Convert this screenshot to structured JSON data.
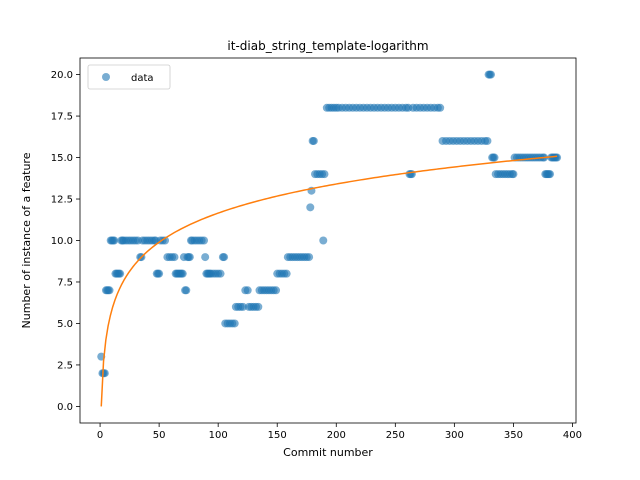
{
  "chart_data": {
    "type": "scatter",
    "title": "it-diab_string_template-logarithm",
    "xlabel": "Commit number",
    "ylabel": "Number of instance of a feature",
    "xlim": [
      -17,
      403
    ],
    "ylim": [
      -1,
      21
    ],
    "xticks": [
      0,
      50,
      100,
      150,
      200,
      250,
      300,
      350,
      400
    ],
    "yticks": [
      0.0,
      2.5,
      5.0,
      7.5,
      10.0,
      12.5,
      15.0,
      17.5,
      20.0
    ],
    "xtick_labels": [
      "0",
      "50",
      "100",
      "150",
      "200",
      "250",
      "300",
      "350",
      "400"
    ],
    "ytick_labels": [
      "0.0",
      "2.5",
      "5.0",
      "7.5",
      "10.0",
      "12.5",
      "15.0",
      "17.5",
      "20.0"
    ],
    "grid": false,
    "legend": {
      "placement": "upper-left",
      "entries": [
        "data"
      ]
    },
    "colors": {
      "data": "#1f77b4",
      "fit": "#ff7f0e"
    },
    "series": [
      {
        "name": "data",
        "kind": "scatter",
        "points": [
          [
            1,
            3
          ],
          [
            2,
            2
          ],
          [
            3,
            2
          ],
          [
            4,
            2
          ],
          [
            5,
            7
          ],
          [
            6,
            7
          ],
          [
            7,
            7
          ],
          [
            8,
            7
          ],
          [
            9,
            10
          ],
          [
            10,
            10
          ],
          [
            11,
            10
          ],
          [
            12,
            10
          ],
          [
            13,
            8
          ],
          [
            14,
            8
          ],
          [
            15,
            8
          ],
          [
            16,
            8
          ],
          [
            17,
            8
          ],
          [
            18,
            10
          ],
          [
            19,
            10
          ],
          [
            20,
            10
          ],
          [
            22,
            10
          ],
          [
            24,
            10
          ],
          [
            26,
            10
          ],
          [
            28,
            10
          ],
          [
            30,
            10
          ],
          [
            32,
            10
          ],
          [
            34,
            9
          ],
          [
            35,
            9
          ],
          [
            36,
            10
          ],
          [
            38,
            10
          ],
          [
            40,
            10
          ],
          [
            42,
            10
          ],
          [
            44,
            10
          ],
          [
            46,
            10
          ],
          [
            47,
            10
          ],
          [
            48,
            8
          ],
          [
            49,
            8
          ],
          [
            50,
            8
          ],
          [
            51,
            10
          ],
          [
            53,
            10
          ],
          [
            55,
            10
          ],
          [
            57,
            9
          ],
          [
            59,
            9
          ],
          [
            61,
            9
          ],
          [
            63,
            9
          ],
          [
            64,
            8
          ],
          [
            65,
            8
          ],
          [
            66,
            8
          ],
          [
            67,
            8
          ],
          [
            68,
            8
          ],
          [
            69,
            8
          ],
          [
            70,
            8
          ],
          [
            71,
            9
          ],
          [
            72,
            7
          ],
          [
            73,
            7
          ],
          [
            74,
            9
          ],
          [
            75,
            9
          ],
          [
            76,
            9
          ],
          [
            77,
            10
          ],
          [
            78,
            10
          ],
          [
            80,
            10
          ],
          [
            82,
            10
          ],
          [
            84,
            10
          ],
          [
            86,
            10
          ],
          [
            88,
            10
          ],
          [
            89,
            9
          ],
          [
            90,
            8
          ],
          [
            91,
            8
          ],
          [
            92,
            8
          ],
          [
            93,
            8
          ],
          [
            94,
            8
          ],
          [
            96,
            8
          ],
          [
            98,
            8
          ],
          [
            100,
            8
          ],
          [
            102,
            8
          ],
          [
            104,
            9
          ],
          [
            105,
            9
          ],
          [
            106,
            5
          ],
          [
            108,
            5
          ],
          [
            110,
            5
          ],
          [
            112,
            5
          ],
          [
            114,
            5
          ],
          [
            115,
            6
          ],
          [
            117,
            6
          ],
          [
            119,
            6
          ],
          [
            121,
            6
          ],
          [
            123,
            7
          ],
          [
            125,
            7
          ],
          [
            126,
            6
          ],
          [
            128,
            6
          ],
          [
            130,
            6
          ],
          [
            132,
            6
          ],
          [
            134,
            6
          ],
          [
            135,
            7
          ],
          [
            137,
            7
          ],
          [
            139,
            7
          ],
          [
            141,
            7
          ],
          [
            143,
            7
          ],
          [
            145,
            7
          ],
          [
            147,
            7
          ],
          [
            149,
            7
          ],
          [
            150,
            8
          ],
          [
            152,
            8
          ],
          [
            154,
            8
          ],
          [
            156,
            8
          ],
          [
            158,
            8
          ],
          [
            159,
            9
          ],
          [
            161,
            9
          ],
          [
            163,
            9
          ],
          [
            165,
            9
          ],
          [
            167,
            9
          ],
          [
            169,
            9
          ],
          [
            171,
            9
          ],
          [
            173,
            9
          ],
          [
            175,
            9
          ],
          [
            177,
            9
          ],
          [
            178,
            12
          ],
          [
            179,
            13
          ],
          [
            180,
            16
          ],
          [
            181,
            16
          ],
          [
            182,
            14
          ],
          [
            184,
            14
          ],
          [
            186,
            14
          ],
          [
            188,
            14
          ],
          [
            189,
            10
          ],
          [
            190,
            14
          ],
          [
            192,
            18
          ],
          [
            194,
            18
          ],
          [
            196,
            18
          ],
          [
            198,
            18
          ],
          [
            200,
            18
          ],
          [
            202,
            18
          ],
          [
            205,
            18
          ],
          [
            208,
            18
          ],
          [
            211,
            18
          ],
          [
            214,
            18
          ],
          [
            217,
            18
          ],
          [
            220,
            18
          ],
          [
            223,
            18
          ],
          [
            226,
            18
          ],
          [
            229,
            18
          ],
          [
            232,
            18
          ],
          [
            235,
            18
          ],
          [
            238,
            18
          ],
          [
            241,
            18
          ],
          [
            244,
            18
          ],
          [
            247,
            18
          ],
          [
            250,
            18
          ],
          [
            253,
            18
          ],
          [
            256,
            18
          ],
          [
            259,
            18
          ],
          [
            261,
            18
          ],
          [
            262,
            14
          ],
          [
            263,
            14
          ],
          [
            264,
            14
          ],
          [
            265,
            18
          ],
          [
            268,
            18
          ],
          [
            271,
            18
          ],
          [
            274,
            18
          ],
          [
            277,
            18
          ],
          [
            280,
            18
          ],
          [
            283,
            18
          ],
          [
            286,
            18
          ],
          [
            288,
            18
          ],
          [
            290,
            16
          ],
          [
            293,
            16
          ],
          [
            296,
            16
          ],
          [
            299,
            16
          ],
          [
            302,
            16
          ],
          [
            305,
            16
          ],
          [
            308,
            16
          ],
          [
            311,
            16
          ],
          [
            314,
            16
          ],
          [
            317,
            16
          ],
          [
            320,
            16
          ],
          [
            323,
            16
          ],
          [
            326,
            16
          ],
          [
            328,
            16
          ],
          [
            329,
            20
          ],
          [
            330,
            20
          ],
          [
            331,
            20
          ],
          [
            332,
            15
          ],
          [
            333,
            15
          ],
          [
            334,
            15
          ],
          [
            335,
            14
          ],
          [
            337,
            14
          ],
          [
            339,
            14
          ],
          [
            341,
            14
          ],
          [
            343,
            14
          ],
          [
            345,
            14
          ],
          [
            347,
            14
          ],
          [
            349,
            14
          ],
          [
            350,
            14
          ],
          [
            351,
            15
          ],
          [
            353,
            15
          ],
          [
            355,
            15
          ],
          [
            357,
            15
          ],
          [
            359,
            15
          ],
          [
            361,
            15
          ],
          [
            363,
            15
          ],
          [
            365,
            15
          ],
          [
            367,
            15
          ],
          [
            369,
            15
          ],
          [
            371,
            15
          ],
          [
            373,
            15
          ],
          [
            375,
            15
          ],
          [
            376,
            15
          ],
          [
            377,
            14
          ],
          [
            378,
            14
          ],
          [
            379,
            14
          ],
          [
            380,
            14
          ],
          [
            381,
            14
          ],
          [
            382,
            15
          ],
          [
            383,
            15
          ],
          [
            384,
            15
          ],
          [
            385,
            15
          ],
          [
            386,
            15
          ],
          [
            387,
            15
          ]
        ]
      },
      {
        "kind": "line",
        "model": "logarithmic",
        "a": 2.53,
        "b": 0.0,
        "x_start": 1,
        "x_end": 387
      }
    ]
  }
}
